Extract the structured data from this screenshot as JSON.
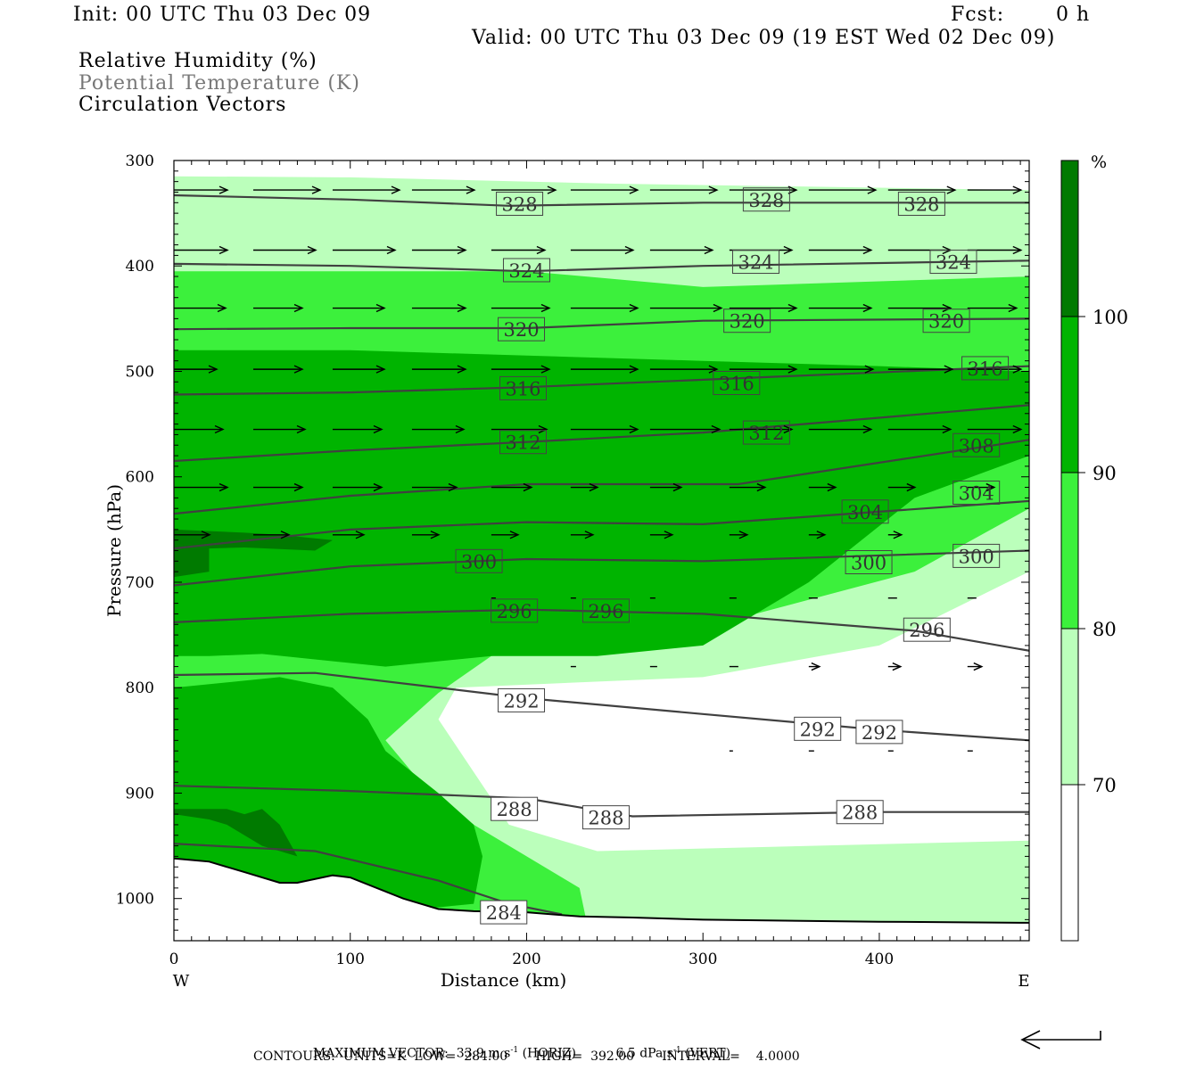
{
  "header": {
    "init": "Init: 00 UTC Thu 03 Dec 09",
    "fcst_label": "Fcst:",
    "fcst_value": "0 h",
    "valid": "Valid: 00 UTC Thu 03 Dec 09 (19 EST Wed 02 Dec 09)"
  },
  "legend_titles": [
    "Relative Humidity (%)",
    "Potential Temperature (K)",
    "Circulation Vectors"
  ],
  "colors": {
    "rh_70_80": "#bbffbb",
    "rh_80_90": "#3cf03c",
    "rh_90_100": "#00b400",
    "rh_100": "#007a00",
    "contour": "#404040"
  },
  "chart_data": {
    "type": "cross-section",
    "xlabel": "Distance (km)",
    "ylabel": "Pressure (hPa)",
    "xlim": [
      0,
      485
    ],
    "ylim": [
      1040,
      300
    ],
    "x_ticks": [
      0,
      100,
      200,
      300,
      400
    ],
    "y_ticks": [
      300,
      400,
      500,
      600,
      700,
      800,
      900,
      1000
    ],
    "west_label": "W",
    "east_label": "E",
    "colorbar": {
      "unit": "%",
      "levels": [
        70,
        80,
        90,
        100
      ],
      "tick_labels": [
        "70",
        "80",
        "90",
        "100"
      ]
    },
    "isentropes": [
      {
        "theta": 328,
        "label": "328",
        "points": [
          [
            0,
            333
          ],
          [
            100,
            337
          ],
          [
            190,
            343
          ],
          [
            300,
            340
          ],
          [
            485,
            340
          ]
        ],
        "labels_at": [
          [
            196,
            341
          ],
          [
            336,
            337
          ],
          [
            424,
            341
          ]
        ]
      },
      {
        "theta": 324,
        "label": "324",
        "points": [
          [
            0,
            398
          ],
          [
            100,
            400
          ],
          [
            200,
            405
          ],
          [
            300,
            400
          ],
          [
            485,
            395
          ]
        ],
        "labels_at": [
          [
            200,
            404
          ],
          [
            330,
            396
          ],
          [
            442,
            396
          ]
        ]
      },
      {
        "theta": 320,
        "label": "320",
        "points": [
          [
            0,
            460
          ],
          [
            100,
            459
          ],
          [
            200,
            459
          ],
          [
            300,
            452
          ],
          [
            485,
            450
          ]
        ],
        "labels_at": [
          [
            197,
            460
          ],
          [
            325,
            452
          ],
          [
            438,
            452
          ]
        ]
      },
      {
        "theta": 316,
        "label": "316",
        "points": [
          [
            0,
            522
          ],
          [
            100,
            520
          ],
          [
            200,
            515
          ],
          [
            300,
            508
          ],
          [
            485,
            495
          ]
        ],
        "labels_at": [
          [
            198,
            516
          ],
          [
            319,
            511
          ],
          [
            460,
            497
          ]
        ]
      },
      {
        "theta": 312,
        "label": "312",
        "points": [
          [
            0,
            585
          ],
          [
            100,
            575
          ],
          [
            200,
            567
          ],
          [
            300,
            558
          ],
          [
            485,
            532
          ]
        ],
        "labels_at": [
          [
            198,
            567
          ],
          [
            336,
            558
          ]
        ]
      },
      {
        "theta": 308,
        "label": "308",
        "points": [
          [
            0,
            635
          ],
          [
            100,
            618
          ],
          [
            200,
            607
          ],
          [
            320,
            607
          ],
          [
            485,
            565
          ]
        ],
        "labels_at": [
          [
            455,
            570
          ]
        ]
      },
      {
        "theta": 304,
        "label": "304",
        "points": [
          [
            0,
            668
          ],
          [
            100,
            650
          ],
          [
            200,
            643
          ],
          [
            300,
            645
          ],
          [
            485,
            623
          ]
        ],
        "labels_at": [
          [
            392,
            633
          ],
          [
            455,
            615
          ]
        ]
      },
      {
        "theta": 300,
        "label": "300",
        "points": [
          [
            0,
            703
          ],
          [
            100,
            685
          ],
          [
            200,
            678
          ],
          [
            300,
            680
          ],
          [
            485,
            670
          ]
        ],
        "labels_at": [
          [
            173,
            680
          ],
          [
            394,
            681
          ],
          [
            455,
            675
          ]
        ]
      },
      {
        "theta": 296,
        "label": "296",
        "points": [
          [
            0,
            738
          ],
          [
            100,
            730
          ],
          [
            200,
            726
          ],
          [
            300,
            730
          ],
          [
            420,
            746
          ],
          [
            485,
            765
          ]
        ],
        "labels_at": [
          [
            193,
            727
          ],
          [
            245,
            727
          ],
          [
            427,
            745
          ]
        ]
      },
      {
        "theta": 292,
        "label": "292",
        "points": [
          [
            0,
            788
          ],
          [
            80,
            786
          ],
          [
            200,
            810
          ],
          [
            300,
            825
          ],
          [
            400,
            840
          ],
          [
            485,
            850
          ]
        ],
        "labels_at": [
          [
            197,
            812
          ],
          [
            365,
            839
          ],
          [
            400,
            842
          ]
        ]
      },
      {
        "theta": 288,
        "label": "288",
        "points": [
          [
            0,
            893
          ],
          [
            100,
            898
          ],
          [
            200,
            905
          ],
          [
            260,
            922
          ],
          [
            400,
            918
          ],
          [
            485,
            918
          ]
        ],
        "labels_at": [
          [
            193,
            915
          ],
          [
            245,
            923
          ],
          [
            389,
            918
          ]
        ]
      },
      {
        "theta": 284,
        "label": "284",
        "points": [
          [
            0,
            948
          ],
          [
            80,
            955
          ],
          [
            150,
            983
          ],
          [
            190,
            1005
          ],
          [
            220,
            1015
          ]
        ],
        "labels_at": [
          [
            187,
            1013
          ]
        ]
      }
    ],
    "surface_pressure": [
      [
        0,
        962
      ],
      [
        20,
        965
      ],
      [
        40,
        975
      ],
      [
        60,
        985
      ],
      [
        70,
        985
      ],
      [
        90,
        978
      ],
      [
        100,
        980
      ],
      [
        130,
        1000
      ],
      [
        150,
        1010
      ],
      [
        170,
        1012
      ],
      [
        200,
        1013
      ],
      [
        230,
        1017
      ],
      [
        260,
        1018
      ],
      [
        300,
        1020
      ],
      [
        400,
        1022
      ],
      [
        485,
        1023
      ]
    ],
    "vector_units": "m s-1 (horiz), dPa s-1 (vert)",
    "max_vector_horiz_ms": 33.9,
    "max_vector_vert_dpas": 6.5,
    "contour_low": 284.0,
    "contour_high": 392.0,
    "contour_interval": 4.0
  },
  "footer": {
    "line1_prefix": "MAXIMUM VECTOR:",
    "horiz_value": "33.9 m s",
    "horiz_exp": "-1",
    "horiz_suffix": " (HORIZ)",
    "vert_value": "6.5 dPa s",
    "vert_exp": "-1",
    "vert_suffix": " (VERT)",
    "line2": "CONTOURS:  UNITS=K  LOW=  284.00       HIGH=  392.00       INTERVAL=    4.0000"
  }
}
